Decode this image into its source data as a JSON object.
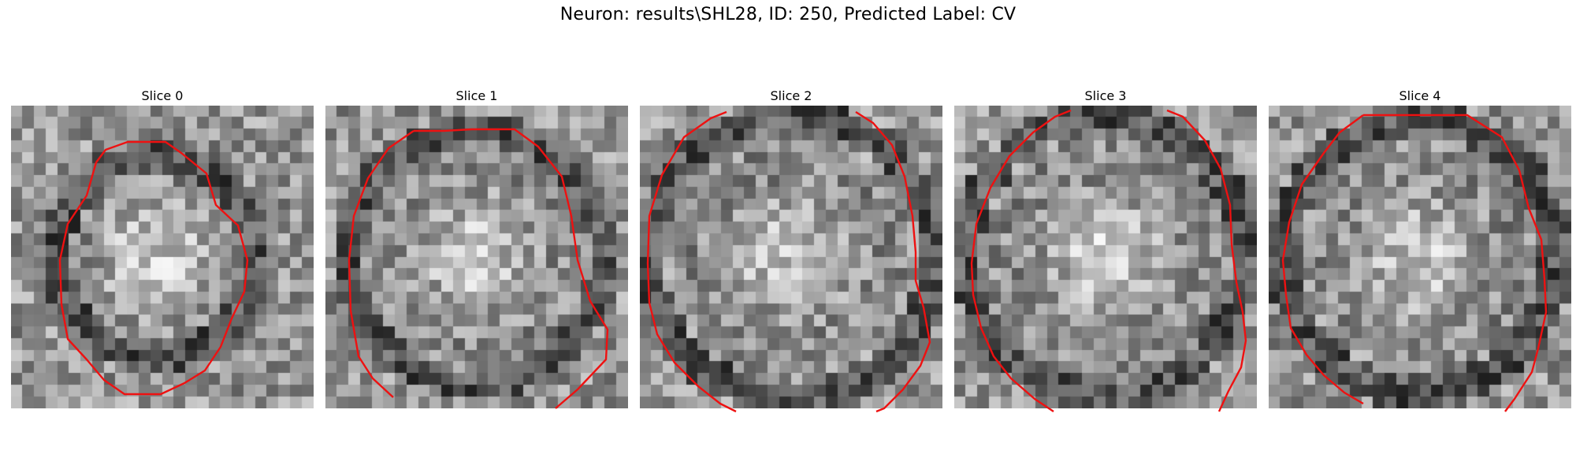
{
  "figure": {
    "title": "Neuron: results\\SHL28, ID: 250, Predicted Label: CV"
  },
  "panels": [
    {
      "title": "Slice 0"
    },
    {
      "title": "Slice 1"
    },
    {
      "title": "Slice 2"
    },
    {
      "title": "Slice 3"
    },
    {
      "title": "Slice 4"
    }
  ],
  "colors": {
    "contour": "#ee1111",
    "background": "#ffffff"
  }
}
